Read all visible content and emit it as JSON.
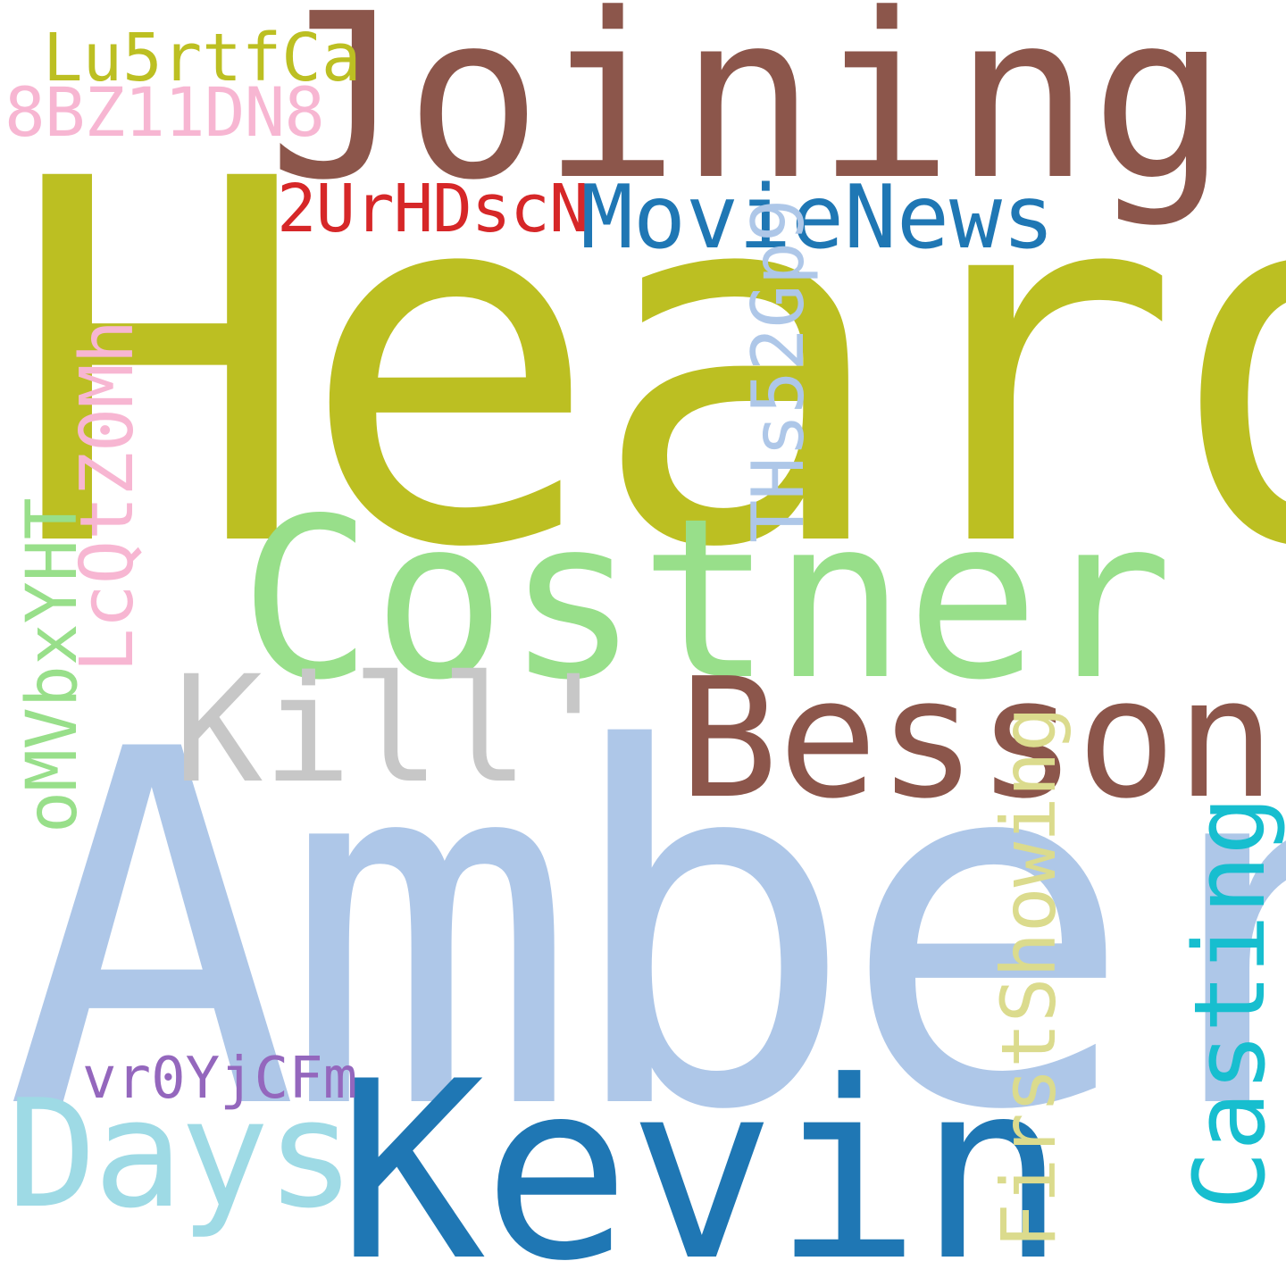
{
  "wordcloud": {
    "words": [
      {
        "text": "Heard",
        "color": "#bcbf22",
        "orientation": "horizontal"
      },
      {
        "text": "Joining",
        "color": "#8c564b",
        "orientation": "horizontal"
      },
      {
        "text": "Amber",
        "color": "#aec7e8",
        "orientation": "horizontal"
      },
      {
        "text": "Costner",
        "color": "#98df8a",
        "orientation": "horizontal"
      },
      {
        "text": "Besson",
        "color": "#8c564b",
        "orientation": "horizontal"
      },
      {
        "text": "Kill'",
        "color": "#c7c7c7",
        "orientation": "horizontal"
      },
      {
        "text": "Kevin",
        "color": "#1f77b4",
        "orientation": "horizontal"
      },
      {
        "text": "Days",
        "color": "#9edae5",
        "orientation": "horizontal"
      },
      {
        "text": "MovieNews",
        "color": "#1f77b4",
        "orientation": "horizontal"
      },
      {
        "text": "2UrHDscN",
        "color": "#d62728",
        "orientation": "horizontal"
      },
      {
        "text": "Lu5rtfCa",
        "color": "#bcbf22",
        "orientation": "horizontal"
      },
      {
        "text": "8BZ11DN8",
        "color": "#f7b6d2",
        "orientation": "horizontal"
      },
      {
        "text": "vr0YjCFm",
        "color": "#9467bd",
        "orientation": "horizontal"
      },
      {
        "text": "THs52Gp9",
        "color": "#aec7e8",
        "orientation": "vertical"
      },
      {
        "text": "LcQtZ0Mh",
        "color": "#f7b6d2",
        "orientation": "vertical"
      },
      {
        "text": "oMVbxYHT",
        "color": "#98df8a",
        "orientation": "vertical"
      },
      {
        "text": "FirstShowing",
        "color": "#dbdb8d",
        "orientation": "vertical"
      },
      {
        "text": "Casting",
        "color": "#17becf",
        "orientation": "vertical"
      }
    ]
  }
}
